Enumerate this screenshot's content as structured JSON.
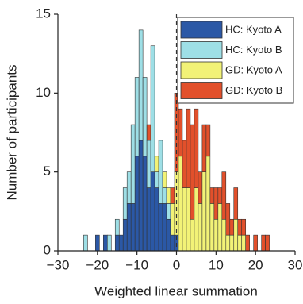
{
  "chart_data": {
    "type": "histogram",
    "xlabel": "Weighted linear summation",
    "ylabel": "Number of participants",
    "bins": [
      -24.5,
      -23.5,
      -22.5,
      -21.5,
      -20.5,
      -19.5,
      -18.5,
      -17.5,
      -16.5,
      -15.5,
      -14.5,
      -13.5,
      -12.5,
      -11.5,
      -10.5,
      -9.5,
      -8.5,
      -7.5,
      -6.5,
      -5.5,
      -4.5,
      -3.5,
      -2.5,
      -1.5,
      -0.5,
      0.5,
      1.5,
      2.5,
      3.5,
      4.5,
      5.5,
      6.5,
      7.5,
      8.5,
      9.5,
      10.5,
      11.5,
      12.5,
      13.5,
      14.5,
      15.5,
      16.5,
      17.5,
      18.5,
      19.5,
      20.5,
      21.5,
      22.5,
      23.5,
      24.5
    ],
    "series": [
      {
        "name": "HC: Kyoto A",
        "color": "#2b58a6",
        "values": [
          0,
          0,
          0,
          0,
          1,
          0,
          1,
          0,
          0,
          1,
          1,
          2,
          3,
          3,
          6,
          7,
          6,
          4,
          5,
          4,
          3,
          3,
          2,
          1,
          1,
          0,
          0,
          0,
          0,
          0,
          0,
          0,
          0,
          0,
          0,
          0,
          0,
          0,
          0,
          0,
          0,
          0,
          0,
          0,
          0,
          0,
          0,
          0,
          0
        ]
      },
      {
        "name": "HC: Kyoto B",
        "color": "#9edfe6",
        "values": [
          0,
          1,
          0,
          0,
          0,
          0,
          0,
          1,
          0,
          1,
          0,
          2,
          2,
          5,
          5,
          7,
          5,
          3,
          8,
          1,
          4,
          1,
          1,
          0,
          0,
          0,
          0,
          0,
          0,
          0,
          0,
          0,
          0,
          0,
          0,
          0,
          0,
          0,
          0,
          0,
          0,
          0,
          0,
          0,
          0,
          0,
          0,
          0,
          0
        ]
      },
      {
        "name": "GD: Kyoto A",
        "color": "#f2f277",
        "values": [
          0,
          0,
          0,
          0,
          0,
          0,
          0,
          0,
          0,
          0,
          0,
          0,
          0,
          0,
          0,
          0,
          0,
          0,
          0,
          1,
          0,
          1,
          1,
          2,
          4,
          6,
          4,
          4,
          2,
          4,
          3,
          5,
          6,
          3,
          2,
          3,
          2,
          1,
          1,
          2,
          1,
          1,
          0,
          0,
          0,
          0,
          0,
          0,
          0
        ]
      },
      {
        "name": "GD: Kyoto B",
        "color": "#e2502b",
        "values": [
          0,
          0,
          0,
          0,
          0,
          0,
          0,
          0,
          0,
          0,
          0,
          0,
          0,
          0,
          0,
          0,
          0,
          1,
          0,
          0,
          0,
          0,
          0,
          1,
          5,
          3,
          3,
          5,
          6,
          5,
          2,
          3,
          2,
          1,
          2,
          1,
          3,
          2,
          1,
          2,
          1,
          1,
          1,
          0,
          1,
          0,
          1,
          1,
          0
        ]
      }
    ],
    "stacked": true,
    "vline": 0,
    "xlim": [
      -30,
      30
    ],
    "xticks": [
      {
        "value": -30,
        "label": "−30"
      },
      {
        "value": -20,
        "label": "−20"
      },
      {
        "value": -10,
        "label": "−10"
      },
      0,
      10,
      20,
      30
    ],
    "ylim": [
      0,
      15
    ],
    "yticks": [
      0,
      5,
      10,
      15
    ],
    "legend": "upper right"
  }
}
